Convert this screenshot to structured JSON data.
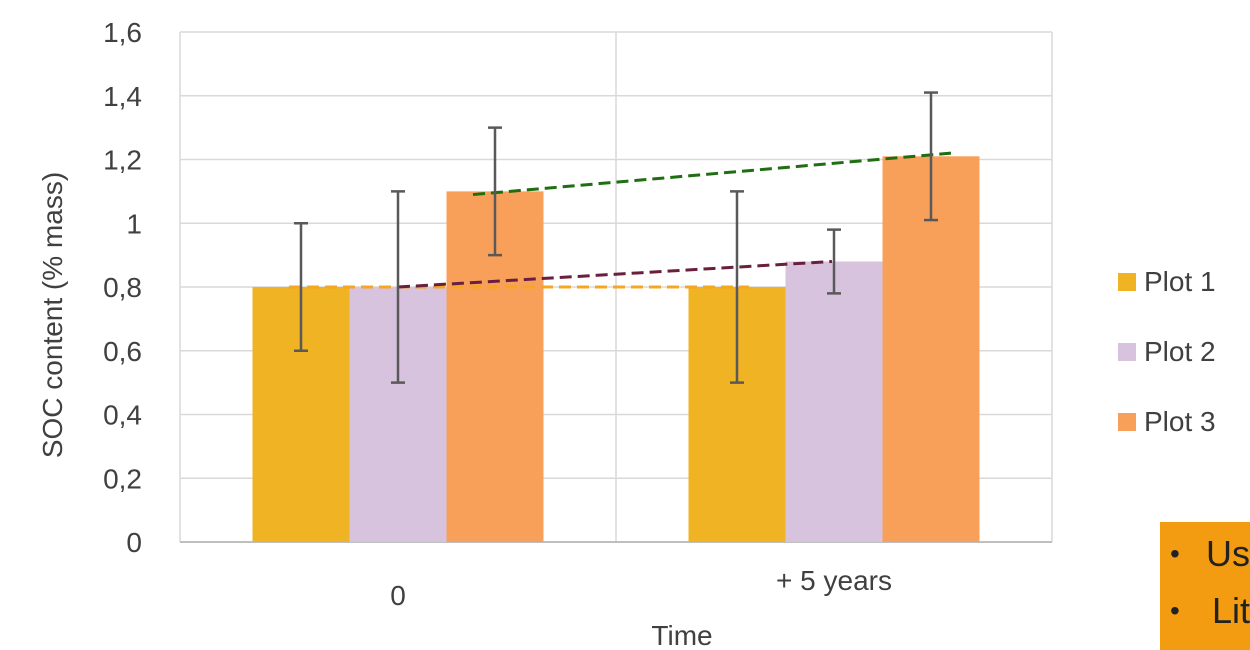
{
  "chart_data": {
    "type": "bar",
    "categories": [
      "0",
      "+ 5 years"
    ],
    "xlabel": "Time",
    "ylabel": "SOC content (% mass)",
    "ylim": [
      0,
      1.6
    ],
    "yticks": [
      "0",
      "0,2",
      "0,4",
      "0,6",
      "0,8",
      "1",
      "1,2",
      "1,4",
      "1,6"
    ],
    "grid": true,
    "legend_position": "right",
    "series": [
      {
        "name": "Plot 1",
        "color": "#f0b323",
        "values": [
          0.8,
          0.8
        ],
        "error_low": [
          0.6,
          0.5
        ],
        "error_high": [
          1.0,
          1.1
        ]
      },
      {
        "name": "Plot 2",
        "color": "#d8c3df",
        "values": [
          0.8,
          0.88
        ],
        "error_low": [
          0.5,
          0.78
        ],
        "error_high": [
          1.1,
          0.98
        ]
      },
      {
        "name": "Plot 3",
        "color": "#f8a05a",
        "values": [
          1.1,
          1.21
        ],
        "error_low": [
          0.9,
          1.01
        ],
        "error_high": [
          1.3,
          1.41
        ]
      }
    ],
    "trendlines": [
      {
        "series": "Plot 1",
        "color": "#f5a623",
        "from": 0.8,
        "to": 0.8
      },
      {
        "series": "Plot 2",
        "color": "#6b1f3e",
        "from": 0.8,
        "to": 0.88
      },
      {
        "series": "Plot 3",
        "color": "#1f6e12",
        "from": 1.09,
        "to": 1.22
      }
    ]
  },
  "callout": {
    "background": "#f39c12",
    "items": [
      {
        "bullet": "•",
        "text": "Us"
      },
      {
        "bullet": "•",
        "text": "Lit"
      }
    ]
  }
}
